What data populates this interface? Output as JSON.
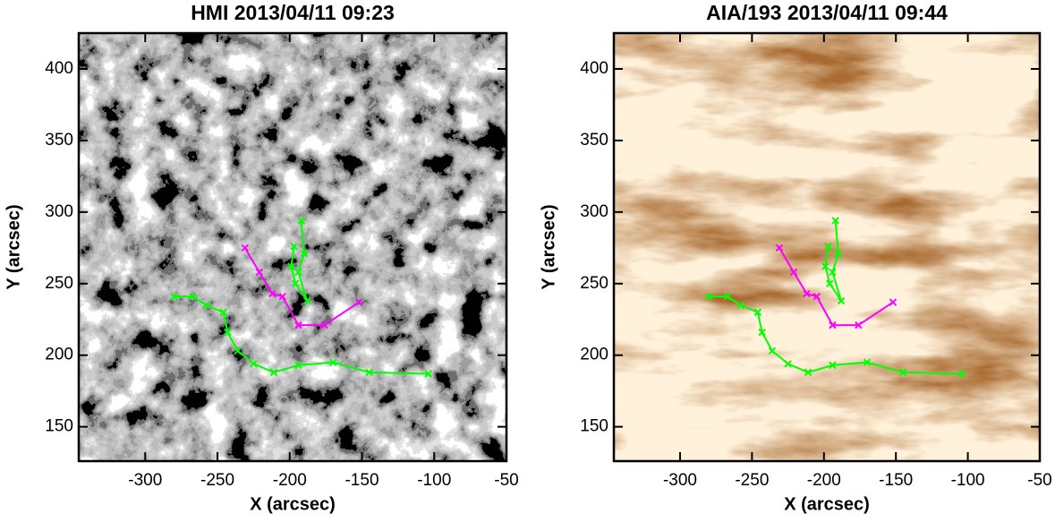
{
  "chart_data": [
    {
      "type": "line",
      "title": "HMI 2013/04/11 09:23",
      "xlabel": "X (arcsec)",
      "ylabel": "Y (arcsec)",
      "xlim": [
        -346,
        -50
      ],
      "ylim": [
        126,
        425
      ],
      "xticks": [
        -300,
        -250,
        -200,
        -150,
        -100,
        -50
      ],
      "yticks": [
        150,
        200,
        250,
        300,
        350,
        400
      ],
      "background": "magnetogram",
      "series": [
        {
          "color": "#00ff00",
          "x": [
            -280,
            -267,
            -258,
            -246,
            -243,
            -236,
            -225,
            -211,
            -194,
            -170,
            -145,
            -104
          ],
          "values": [
            241,
            241,
            235,
            230,
            216,
            203,
            194,
            188,
            193,
            195,
            188,
            187
          ]
        },
        {
          "color": "#ff00ff",
          "x": [
            -231,
            -221,
            -212,
            -205,
            -194,
            -176,
            -152
          ],
          "values": [
            275,
            258,
            243,
            241,
            221,
            221,
            237
          ]
        },
        {
          "color": "#00ff00",
          "x": [
            -192,
            -190,
            -194,
            -188,
            -196,
            -199,
            -197
          ],
          "values": [
            294,
            271,
            258,
            238,
            250,
            262,
            276
          ]
        }
      ]
    },
    {
      "type": "line",
      "title": "AIA/193 2013/04/11 09:44",
      "xlabel": "X (arcsec)",
      "ylabel": "Y (arcsec)",
      "xlim": [
        -346,
        -50
      ],
      "ylim": [
        126,
        425
      ],
      "xticks": [
        -300,
        -250,
        -200,
        -150,
        -100,
        -50
      ],
      "yticks": [
        150,
        200,
        250,
        300,
        350,
        400
      ],
      "background": "euv",
      "series": [
        {
          "color": "#00ff00",
          "x": [
            -280,
            -267,
            -258,
            -246,
            -243,
            -236,
            -225,
            -211,
            -194,
            -170,
            -145,
            -104
          ],
          "values": [
            241,
            241,
            235,
            230,
            216,
            203,
            194,
            188,
            193,
            195,
            188,
            187
          ]
        },
        {
          "color": "#ff00ff",
          "x": [
            -231,
            -221,
            -212,
            -205,
            -194,
            -176,
            -152
          ],
          "values": [
            275,
            258,
            243,
            241,
            221,
            221,
            237
          ]
        },
        {
          "color": "#00ff00",
          "x": [
            -192,
            -190,
            -194,
            -188,
            -196,
            -199,
            -197
          ],
          "values": [
            294,
            271,
            258,
            238,
            250,
            262,
            276
          ]
        }
      ]
    }
  ]
}
